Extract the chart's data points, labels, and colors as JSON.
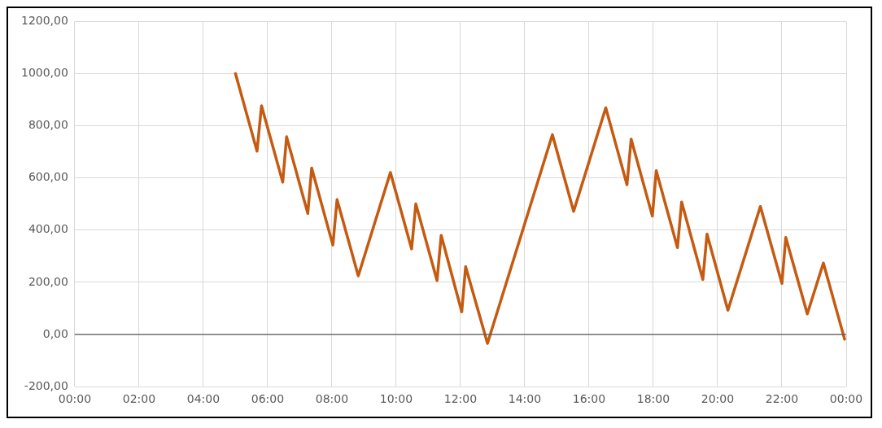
{
  "chart_data": {
    "type": "line",
    "x": [
      5.0,
      5.67,
      5.81,
      6.47,
      6.59,
      7.25,
      7.37,
      8.03,
      8.16,
      8.82,
      9.82,
      10.48,
      10.61,
      11.27,
      11.4,
      12.04,
      12.16,
      12.84,
      14.86,
      15.52,
      16.52,
      17.18,
      17.31,
      17.97,
      18.09,
      18.75,
      18.88,
      19.54,
      19.67,
      20.32,
      21.33,
      22.0,
      22.12,
      22.79,
      23.29,
      23.95
    ],
    "series": [
      {
        "color": "#c55a11",
        "values": [
          1000,
          703,
          877,
          584,
          758,
          464,
          638,
          343,
          517,
          225,
          621,
          328,
          501,
          207,
          380,
          87,
          260,
          -34,
          766,
          472,
          869,
          574,
          749,
          454,
          628,
          333,
          508,
          211,
          385,
          93,
          491,
          196,
          372,
          79,
          274,
          -18
        ]
      }
    ],
    "xlim": [
      0,
      24
    ],
    "xticks": [
      {
        "value": 0,
        "label": "00:00"
      },
      {
        "value": 2,
        "label": "02:00"
      },
      {
        "value": 4,
        "label": "04:00"
      },
      {
        "value": 6,
        "label": "06:00"
      },
      {
        "value": 8,
        "label": "08:00"
      },
      {
        "value": 10,
        "label": "10:00"
      },
      {
        "value": 12,
        "label": "12:00"
      },
      {
        "value": 14,
        "label": "14:00"
      },
      {
        "value": 16,
        "label": "16:00"
      },
      {
        "value": 18,
        "label": "18:00"
      },
      {
        "value": 20,
        "label": "20:00"
      },
      {
        "value": 22,
        "label": "22:00"
      },
      {
        "value": 24,
        "label": "00:00"
      }
    ],
    "ylim": [
      -200,
      1200
    ],
    "yticks": [
      {
        "value": -200,
        "label": "-200,00"
      },
      {
        "value": 0,
        "label": "0,00"
      },
      {
        "value": 200,
        "label": "200,00"
      },
      {
        "value": 400,
        "label": "400,00"
      },
      {
        "value": 600,
        "label": "600,00"
      },
      {
        "value": 800,
        "label": "800,00"
      },
      {
        "value": 1000,
        "label": "1000,00"
      },
      {
        "value": 1200,
        "label": "1200,00"
      }
    ],
    "ref_lines": [
      {
        "axis": "y",
        "value": 0,
        "color": "#595959"
      }
    ],
    "grid": true,
    "legend": false,
    "marker": "none",
    "line_style": "solid"
  }
}
